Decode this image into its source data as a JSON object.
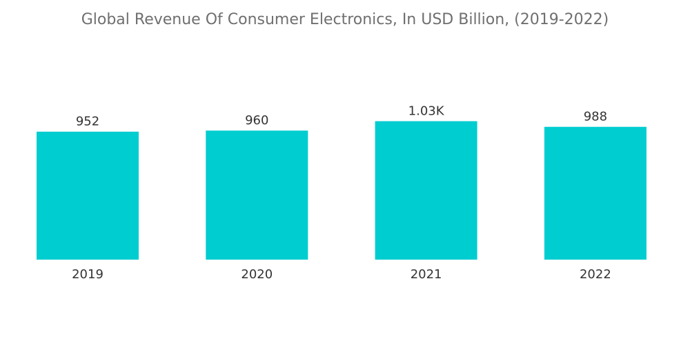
{
  "chart_data": {
    "type": "bar",
    "title": "Global Revenue Of Consumer Electronics, In USD Billion, (2019-2022)",
    "categories": [
      "2019",
      "2020",
      "2021",
      "2022"
    ],
    "values": [
      952,
      960,
      1030,
      988
    ],
    "data_labels": [
      "952",
      "960",
      "1.03K",
      "988"
    ],
    "xlabel": "",
    "ylabel": "",
    "ylim": [
      0,
      1100
    ],
    "grid": false,
    "legend": "none",
    "bar_color": "#00cdd0"
  }
}
